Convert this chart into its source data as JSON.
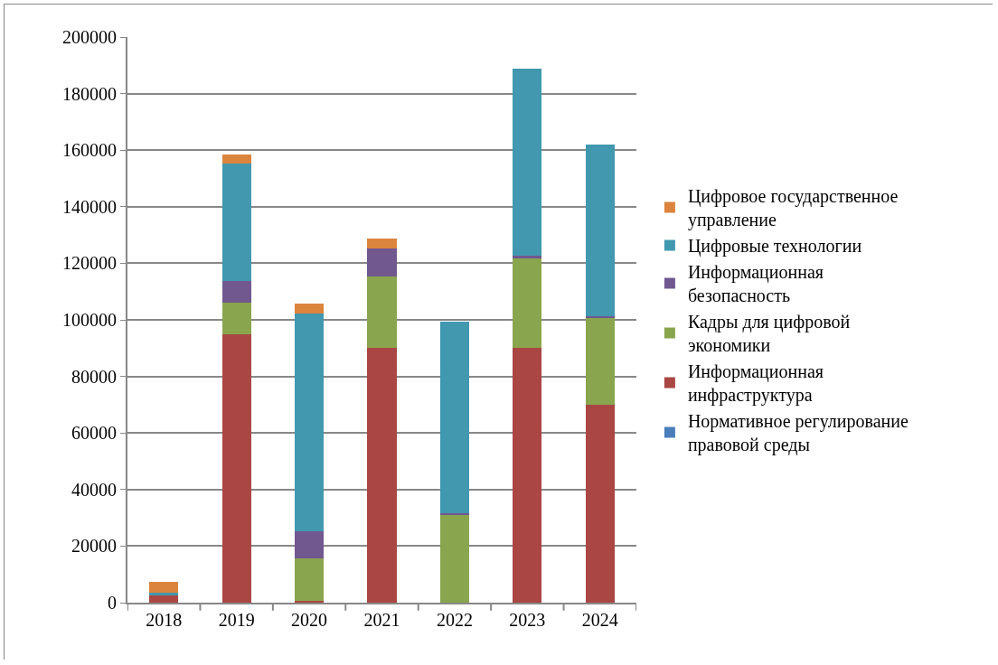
{
  "chart_data": {
    "type": "bar",
    "stacked": true,
    "categories": [
      "2018",
      "2019",
      "2020",
      "2021",
      "2022",
      "2023",
      "2024"
    ],
    "series": [
      {
        "name": "Нормативное регулирование правовой среды",
        "color": "#4a7ebb",
        "values": [
          0,
          0,
          0,
          0,
          0,
          0,
          0
        ]
      },
      {
        "name": "Информационная инфраструктура",
        "color": "#aa4643",
        "values": [
          2600,
          95000,
          600,
          90000,
          0,
          90000,
          70000
        ]
      },
      {
        "name": "Кадры для цифровой экономики",
        "color": "#89a54e",
        "values": [
          0,
          11000,
          15000,
          25300,
          30900,
          31800,
          30600
        ]
      },
      {
        "name": "Информационная безопасность",
        "color": "#71588f",
        "values": [
          0,
          7700,
          9500,
          10100,
          700,
          1000,
          700
        ]
      },
      {
        "name": "Цифровые технологии",
        "color": "#4198af",
        "values": [
          800,
          41700,
          77200,
          0,
          67700,
          66100,
          60600
        ]
      },
      {
        "name": "Цифровое государственное управление",
        "color": "#db843d",
        "values": [
          3800,
          3200,
          3600,
          3300,
          0,
          0,
          0
        ]
      }
    ],
    "ylim": [
      0,
      200000
    ],
    "yticks": [
      0,
      20000,
      40000,
      60000,
      80000,
      100000,
      120000,
      140000,
      160000,
      180000,
      200000
    ],
    "grid": "y",
    "legend": "right"
  }
}
